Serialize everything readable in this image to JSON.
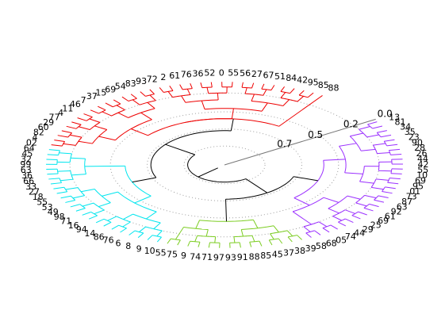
{
  "chart_data": {
    "type": "dendrogram",
    "layout": "fan (circular, tilted)",
    "radial_axis": {
      "ticks": [
        "0.0",
        "0.2",
        "0.5",
        "0.7"
      ],
      "grid": "dotted rings"
    },
    "clusters": [
      {
        "color": "#9B30FF",
        "labels": [
          "13",
          "81",
          "34",
          "35",
          "23",
          "90",
          "28",
          "26",
          "44",
          "42",
          "55",
          "10",
          "69",
          "95",
          "01",
          "73",
          "87",
          "63",
          "92",
          "61",
          "69",
          "25",
          "29",
          "44",
          "74",
          "05",
          "68",
          "58"
        ]
      },
      {
        "color": "#7CCD22",
        "labels": [
          "39",
          "38",
          "37",
          "45",
          "85",
          "88",
          "91",
          "93",
          "97",
          "71",
          "74",
          "9",
          "75",
          "55"
        ]
      },
      {
        "color": "#00E5EE",
        "labels": [
          "10",
          "9",
          "8",
          "6",
          "76",
          "86",
          "14",
          "94",
          "16",
          "71",
          "98",
          "49",
          "53",
          "55",
          "18",
          "27",
          "33",
          "66",
          "36",
          "63",
          "99",
          "32",
          "45",
          "64"
        ]
      },
      {
        "color": "#EE0000",
        "labels": [
          "02",
          "4",
          "82",
          "60",
          "29",
          "77",
          "4",
          "11",
          "46",
          "7",
          "37",
          "15",
          "69",
          "54",
          "83",
          "93",
          "72",
          "2",
          "61",
          "76",
          "36",
          "52",
          "0",
          "55",
          "56",
          "27",
          "67",
          "51",
          "84",
          "42",
          "95",
          "85",
          "88"
        ]
      }
    ]
  }
}
